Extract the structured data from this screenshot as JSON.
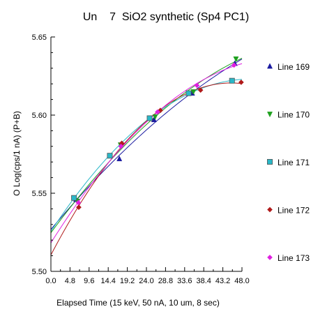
{
  "chart_data": {
    "type": "scatter",
    "title": "Un    7  SiO2 synthetic (Sp4 PC1)",
    "xlabel": "Elapsed Time (15 keV, 50 nA, 10 um, 8 sec)",
    "ylabel": "O Log(cps/1 nA) (P+B)",
    "xlim": [
      0,
      48
    ],
    "ylim": [
      5.5,
      5.65
    ],
    "x_ticks": [
      "0.0",
      "4.8",
      "9.6",
      "14.4",
      "19.2",
      "24.0",
      "28.8",
      "33.6",
      "38.4",
      "43.2",
      "48.0"
    ],
    "y_ticks": [
      "5.50",
      "5.55",
      "5.60",
      "5.65"
    ],
    "legend_position": "right",
    "grid": false,
    "fit": "quadratic",
    "series": [
      {
        "name": "Line 169",
        "marker": "triangle-up",
        "color": "#1a1aa0",
        "x": [
          6.3,
          17.2,
          25.9,
          35.5,
          46.2
        ],
        "y": [
          5.546,
          5.572,
          5.597,
          5.614,
          5.633
        ]
      },
      {
        "name": "Line 170",
        "marker": "triangle-down",
        "color": "#1fa11f",
        "x": [
          6.6,
          17.5,
          26.2,
          35.8,
          46.5
        ],
        "y": [
          5.545,
          5.581,
          5.599,
          5.615,
          5.636
        ]
      },
      {
        "name": "Line 171",
        "marker": "square",
        "color": "#2ab8c8",
        "x": [
          5.8,
          14.8,
          24.8,
          34.6,
          45.5
        ],
        "y": [
          5.547,
          5.574,
          5.598,
          5.614,
          5.622
        ]
      },
      {
        "name": "Line 172",
        "marker": "diamond",
        "color": "#b01a1a",
        "x": [
          7.0,
          17.8,
          27.5,
          37.6,
          47.8
        ],
        "y": [
          5.541,
          5.582,
          5.603,
          5.616,
          5.621
        ]
      },
      {
        "name": "Line 173",
        "marker": "diamond",
        "color": "#e020e0",
        "x": [
          6.9,
          17.6,
          26.8,
          36.7,
          46.0
        ],
        "y": [
          5.544,
          5.58,
          5.602,
          5.619,
          5.632
        ]
      }
    ]
  }
}
